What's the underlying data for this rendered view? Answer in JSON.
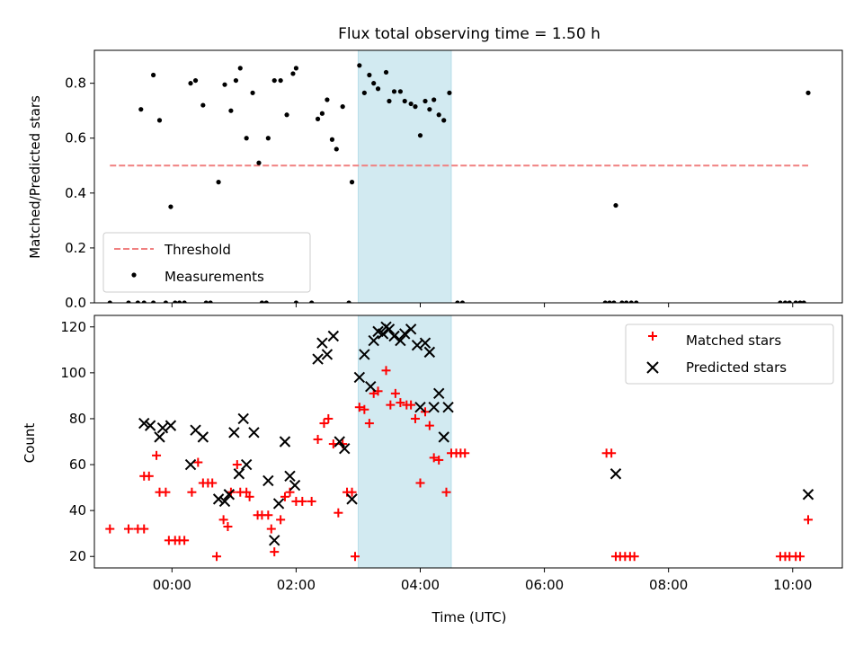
{
  "figure": {
    "title": "Flux total observing time = 1.50 h"
  },
  "chart_data": [
    {
      "type": "scatter",
      "ylabel": "Matched/Predicted stars",
      "xlabel": "",
      "xlim": [
        -1.25,
        10.8
      ],
      "ylim": [
        0,
        0.92
      ],
      "yticks": [
        0.0,
        0.2,
        0.4,
        0.6,
        0.8
      ],
      "ytick_labels": [
        "0.0",
        "0.2",
        "0.4",
        "0.6",
        "0.8"
      ],
      "xticks": [
        0,
        2,
        4,
        6,
        8,
        10
      ],
      "grid": false,
      "legend": "lower-left",
      "shaded_interval": {
        "x": [
          3.0,
          4.5
        ],
        "color": "#add8e6"
      },
      "threshold": {
        "name": "Threshold",
        "x": [
          -1.0,
          10.25
        ],
        "y": 0.5,
        "color": "#f08080",
        "style": "dashed"
      },
      "series": [
        {
          "name": "Measurements",
          "color": "#000000",
          "marker": "dot",
          "points": [
            [
              -0.5,
              0.705
            ],
            [
              -0.3,
              0.83
            ],
            [
              -0.2,
              0.665
            ],
            [
              -0.02,
              0.35
            ],
            [
              0.3,
              0.8
            ],
            [
              0.38,
              0.81
            ],
            [
              0.5,
              0.72
            ],
            [
              0.75,
              0.44
            ],
            [
              0.85,
              0.795
            ],
            [
              0.95,
              0.7
            ],
            [
              1.03,
              0.81
            ],
            [
              1.1,
              0.855
            ],
            [
              1.2,
              0.6
            ],
            [
              1.3,
              0.765
            ],
            [
              1.4,
              0.51
            ],
            [
              1.55,
              0.6
            ],
            [
              1.65,
              0.81
            ],
            [
              1.75,
              0.81
            ],
            [
              1.85,
              0.685
            ],
            [
              1.95,
              0.835
            ],
            [
              2.0,
              0.855
            ],
            [
              2.35,
              0.67
            ],
            [
              2.42,
              0.69
            ],
            [
              2.5,
              0.74
            ],
            [
              2.58,
              0.595
            ],
            [
              2.65,
              0.56
            ],
            [
              2.75,
              0.715
            ],
            [
              2.9,
              0.44
            ],
            [
              3.02,
              0.865
            ],
            [
              3.1,
              0.765
            ],
            [
              3.18,
              0.83
            ],
            [
              3.25,
              0.8
            ],
            [
              3.32,
              0.78
            ],
            [
              3.45,
              0.84
            ],
            [
              3.5,
              0.735
            ],
            [
              3.58,
              0.77
            ],
            [
              3.68,
              0.77
            ],
            [
              3.75,
              0.735
            ],
            [
              3.85,
              0.725
            ],
            [
              3.92,
              0.715
            ],
            [
              4.0,
              0.61
            ],
            [
              4.08,
              0.735
            ],
            [
              4.15,
              0.705
            ],
            [
              4.22,
              0.74
            ],
            [
              4.3,
              0.685
            ],
            [
              4.38,
              0.665
            ],
            [
              4.47,
              0.765
            ],
            [
              7.15,
              0.355
            ],
            [
              10.25,
              0.765
            ],
            [
              -1.0,
              0.0
            ],
            [
              -0.7,
              0.0
            ],
            [
              -0.55,
              0.0
            ],
            [
              -0.45,
              0.0
            ],
            [
              -0.3,
              0.0
            ],
            [
              -0.1,
              0.0
            ],
            [
              0.05,
              0.0
            ],
            [
              0.12,
              0.0
            ],
            [
              0.2,
              0.0
            ],
            [
              0.55,
              0.0
            ],
            [
              0.62,
              0.0
            ],
            [
              1.45,
              0.0
            ],
            [
              1.52,
              0.0
            ],
            [
              2.0,
              0.0
            ],
            [
              2.25,
              0.0
            ],
            [
              2.85,
              0.0
            ],
            [
              4.6,
              0.0
            ],
            [
              4.68,
              0.0
            ],
            [
              6.98,
              0.0
            ],
            [
              7.05,
              0.0
            ],
            [
              7.12,
              0.0
            ],
            [
              7.25,
              0.0
            ],
            [
              7.32,
              0.0
            ],
            [
              7.4,
              0.0
            ],
            [
              7.48,
              0.0
            ],
            [
              9.8,
              0.0
            ],
            [
              9.88,
              0.0
            ],
            [
              9.95,
              0.0
            ],
            [
              10.05,
              0.0
            ],
            [
              10.12,
              0.0
            ],
            [
              10.18,
              0.0
            ]
          ]
        }
      ]
    },
    {
      "type": "scatter",
      "ylabel": "Count",
      "xlabel": "Time (UTC)",
      "xlim": [
        -1.25,
        10.8
      ],
      "ylim": [
        15,
        125
      ],
      "yticks": [
        20,
        40,
        60,
        80,
        100,
        120
      ],
      "ytick_labels": [
        "20",
        "40",
        "60",
        "80",
        "100",
        "120"
      ],
      "xticks": [
        0,
        2,
        4,
        6,
        8,
        10
      ],
      "xtick_labels": [
        "00:00",
        "02:00",
        "04:00",
        "06:00",
        "08:00",
        "10:00"
      ],
      "grid": false,
      "legend": "top-right",
      "shaded_interval": {
        "x": [
          3.0,
          4.5
        ],
        "color": "#add8e6"
      },
      "series": [
        {
          "name": "Matched stars",
          "color": "#ff0000",
          "marker": "plus",
          "points": [
            [
              -1.0,
              32
            ],
            [
              -0.7,
              32
            ],
            [
              -0.55,
              32
            ],
            [
              -0.45,
              32
            ],
            [
              -0.45,
              55
            ],
            [
              -0.37,
              55
            ],
            [
              -0.25,
              64
            ],
            [
              -0.2,
              48
            ],
            [
              -0.1,
              48
            ],
            [
              -0.05,
              27
            ],
            [
              0.05,
              27
            ],
            [
              0.12,
              27
            ],
            [
              0.2,
              27
            ],
            [
              0.32,
              48
            ],
            [
              0.42,
              61
            ],
            [
              0.5,
              52
            ],
            [
              0.58,
              52
            ],
            [
              0.65,
              52
            ],
            [
              0.72,
              20
            ],
            [
              0.83,
              36
            ],
            [
              0.9,
              33
            ],
            [
              0.95,
              48
            ],
            [
              1.05,
              60
            ],
            [
              1.1,
              48
            ],
            [
              1.2,
              48
            ],
            [
              1.25,
              46
            ],
            [
              1.38,
              38
            ],
            [
              1.45,
              38
            ],
            [
              1.55,
              38
            ],
            [
              1.6,
              32
            ],
            [
              1.65,
              22
            ],
            [
              1.75,
              36
            ],
            [
              1.82,
              46
            ],
            [
              1.9,
              48
            ],
            [
              2.0,
              44
            ],
            [
              2.1,
              44
            ],
            [
              2.25,
              44
            ],
            [
              2.35,
              71
            ],
            [
              2.45,
              78
            ],
            [
              2.52,
              80
            ],
            [
              2.6,
              69
            ],
            [
              2.68,
              39
            ],
            [
              2.75,
              69
            ],
            [
              2.82,
              48
            ],
            [
              2.9,
              48
            ],
            [
              2.95,
              20
            ],
            [
              3.02,
              85
            ],
            [
              3.1,
              84
            ],
            [
              3.18,
              78
            ],
            [
              3.25,
              91
            ],
            [
              3.32,
              92
            ],
            [
              3.45,
              101
            ],
            [
              3.52,
              86
            ],
            [
              3.6,
              91
            ],
            [
              3.68,
              87
            ],
            [
              3.78,
              86
            ],
            [
              3.85,
              86
            ],
            [
              3.92,
              80
            ],
            [
              4.0,
              52
            ],
            [
              4.08,
              83
            ],
            [
              4.15,
              77
            ],
            [
              4.22,
              63
            ],
            [
              4.3,
              62
            ],
            [
              4.42,
              48
            ],
            [
              4.5,
              65
            ],
            [
              4.58,
              65
            ],
            [
              4.65,
              65
            ],
            [
              4.72,
              65
            ],
            [
              7.0,
              65
            ],
            [
              7.08,
              65
            ],
            [
              7.15,
              20
            ],
            [
              7.22,
              20
            ],
            [
              7.3,
              20
            ],
            [
              7.38,
              20
            ],
            [
              7.45,
              20
            ],
            [
              9.8,
              20
            ],
            [
              9.88,
              20
            ],
            [
              9.95,
              20
            ],
            [
              10.05,
              20
            ],
            [
              10.12,
              20
            ],
            [
              10.25,
              36
            ]
          ]
        },
        {
          "name": "Predicted stars",
          "color": "#000000",
          "marker": "x",
          "points": [
            [
              -0.45,
              78
            ],
            [
              -0.35,
              77
            ],
            [
              -0.2,
              72
            ],
            [
              -0.15,
              76
            ],
            [
              -0.02,
              77
            ],
            [
              0.3,
              60
            ],
            [
              0.38,
              75
            ],
            [
              0.5,
              72
            ],
            [
              0.75,
              45
            ],
            [
              0.85,
              44
            ],
            [
              0.92,
              47
            ],
            [
              1.0,
              74
            ],
            [
              1.08,
              56
            ],
            [
              1.15,
              80
            ],
            [
              1.2,
              60
            ],
            [
              1.32,
              74
            ],
            [
              1.55,
              53
            ],
            [
              1.65,
              27
            ],
            [
              1.72,
              43
            ],
            [
              1.82,
              70
            ],
            [
              1.9,
              55
            ],
            [
              1.98,
              51
            ],
            [
              2.35,
              106
            ],
            [
              2.42,
              113
            ],
            [
              2.5,
              108
            ],
            [
              2.6,
              116
            ],
            [
              2.7,
              70
            ],
            [
              2.78,
              67
            ],
            [
              2.9,
              45
            ],
            [
              3.02,
              98
            ],
            [
              3.1,
              108
            ],
            [
              3.2,
              94
            ],
            [
              3.25,
              114
            ],
            [
              3.32,
              118
            ],
            [
              3.4,
              117
            ],
            [
              3.45,
              120
            ],
            [
              3.5,
              119
            ],
            [
              3.58,
              116
            ],
            [
              3.68,
              114
            ],
            [
              3.75,
              117
            ],
            [
              3.85,
              119
            ],
            [
              3.95,
              112
            ],
            [
              4.0,
              85
            ],
            [
              4.08,
              113
            ],
            [
              4.15,
              109
            ],
            [
              4.22,
              85
            ],
            [
              4.3,
              91
            ],
            [
              4.38,
              72
            ],
            [
              4.45,
              85
            ],
            [
              7.15,
              56
            ],
            [
              10.25,
              47
            ]
          ]
        }
      ]
    }
  ]
}
